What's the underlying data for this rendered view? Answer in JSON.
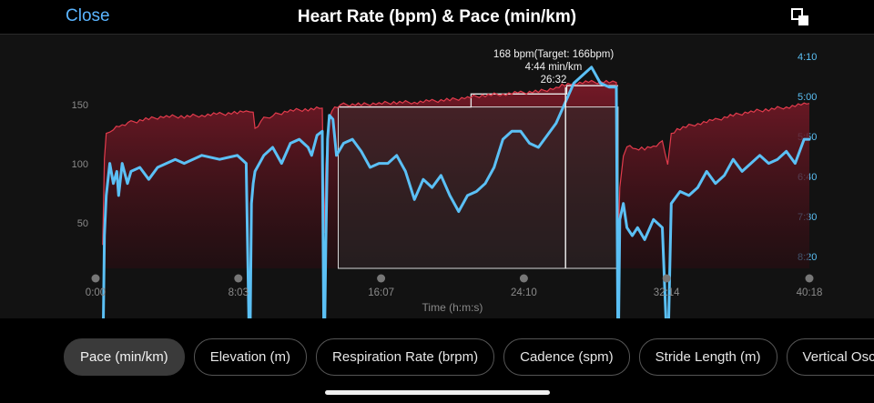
{
  "header": {
    "close_label": "Close",
    "title": "Heart Rate (bpm) & Pace (min/km)",
    "expand_icon": "expand-icon"
  },
  "colors": {
    "accent": "#5ab4ff",
    "heart_rate": "#e23b4c",
    "pace": "#5bc0f5"
  },
  "tooltip": {
    "heart_rate": "168 bpm(Target: 166bpm)",
    "pace": "4:44 min/km",
    "time": "26:32"
  },
  "tabs": [
    "Pace (min/km)",
    "Elevation (m)",
    "Respiration Rate (brpm)",
    "Cadence (spm)",
    "Stride Length (m)",
    "Vertical Oscillation"
  ],
  "chart_data": {
    "type": "line",
    "xlabel": "Time (h:m:s)",
    "x_ticks": [
      "0:00",
      "8:03",
      "16:07",
      "24:10",
      "32:14",
      "40:18"
    ],
    "x_range_min": [
      0,
      40.3
    ],
    "y_left_ticks": [
      "150",
      "100",
      "50"
    ],
    "y_right_ticks": [
      "4:10",
      "5:00",
      "5:50",
      "6:40",
      "7:30",
      "8:20"
    ],
    "target_band_bpm": [
      [
        13.7,
        21.2,
        148
      ],
      [
        21.2,
        26.6,
        159
      ],
      [
        26.6,
        29.5,
        166
      ]
    ],
    "series": [
      {
        "name": "Heart Rate (bpm)",
        "axis": "left",
        "points": [
          [
            0.4,
            30
          ],
          [
            0.5,
            105
          ],
          [
            0.6,
            125
          ],
          [
            1,
            130
          ],
          [
            1.5,
            133
          ],
          [
            2,
            135
          ],
          [
            3,
            138
          ],
          [
            4,
            140
          ],
          [
            5,
            140
          ],
          [
            6,
            141
          ],
          [
            7,
            142
          ],
          [
            8,
            143
          ],
          [
            8.5,
            144
          ],
          [
            8.9,
            145
          ],
          [
            9,
            130
          ],
          [
            9.5,
            138
          ],
          [
            10,
            141
          ],
          [
            11,
            145
          ],
          [
            12,
            146
          ],
          [
            12.8,
            147
          ],
          [
            12.9,
            40
          ],
          [
            13,
            100
          ],
          [
            13.1,
            125
          ],
          [
            13.2,
            140
          ],
          [
            13.5,
            148
          ],
          [
            14,
            150
          ],
          [
            15,
            150
          ],
          [
            16,
            151
          ],
          [
            17,
            152
          ],
          [
            18,
            152
          ],
          [
            19,
            153
          ],
          [
            20,
            154
          ],
          [
            21,
            156
          ],
          [
            22,
            158
          ],
          [
            23,
            159
          ],
          [
            24,
            160
          ],
          [
            25,
            161
          ],
          [
            26,
            164
          ],
          [
            26.5,
            167
          ],
          [
            27,
            168
          ],
          [
            28,
            169
          ],
          [
            29,
            169
          ],
          [
            29.4,
            168
          ],
          [
            29.5,
            30
          ],
          [
            29.6,
            80
          ],
          [
            29.8,
            105
          ],
          [
            30,
            115
          ],
          [
            30.5,
            112
          ],
          [
            31,
            113
          ],
          [
            31.5,
            115
          ],
          [
            32,
            118
          ],
          [
            32.3,
            100
          ],
          [
            32.5,
            125
          ],
          [
            33,
            130
          ],
          [
            34,
            134
          ],
          [
            35,
            137
          ],
          [
            36,
            141
          ],
          [
            37,
            144
          ],
          [
            38,
            146
          ],
          [
            39,
            148
          ],
          [
            40,
            150
          ],
          [
            40.3,
            151
          ]
        ]
      },
      {
        "name": "Pace (min/km)",
        "axis": "right",
        "points": [
          [
            0.4,
            8.1
          ],
          [
            0.5,
            6.4
          ],
          [
            0.6,
            5.9
          ],
          [
            0.8,
            5.5
          ],
          [
            1,
            5.75
          ],
          [
            1.2,
            5.6
          ],
          [
            1.3,
            5.9
          ],
          [
            1.5,
            5.5
          ],
          [
            1.8,
            5.75
          ],
          [
            2,
            5.6
          ],
          [
            2.5,
            5.55
          ],
          [
            3,
            5.7
          ],
          [
            3.5,
            5.55
          ],
          [
            4,
            5.5
          ],
          [
            4.5,
            5.45
          ],
          [
            5,
            5.5
          ],
          [
            6,
            5.4
          ],
          [
            7,
            5.45
          ],
          [
            8,
            5.4
          ],
          [
            8.5,
            5.5
          ],
          [
            8.7,
            8.1
          ],
          [
            8.8,
            6.0
          ],
          [
            8.9,
            5.75
          ],
          [
            9,
            5.6
          ],
          [
            9.5,
            5.4
          ],
          [
            10,
            5.3
          ],
          [
            10.5,
            5.5
          ],
          [
            11,
            5.25
          ],
          [
            11.5,
            5.2
          ],
          [
            12,
            5.3
          ],
          [
            12.2,
            5.4
          ],
          [
            12.5,
            5.15
          ],
          [
            12.8,
            5.1
          ],
          [
            12.9,
            8.1
          ],
          [
            13,
            6.5
          ],
          [
            13.1,
            5.2
          ],
          [
            13.2,
            4.9
          ],
          [
            13.4,
            4.95
          ],
          [
            13.6,
            5.4
          ],
          [
            14,
            5.25
          ],
          [
            14.5,
            5.2
          ],
          [
            15,
            5.35
          ],
          [
            15.5,
            5.55
          ],
          [
            16,
            5.5
          ],
          [
            16.5,
            5.5
          ],
          [
            17,
            5.4
          ],
          [
            17.5,
            5.6
          ],
          [
            18,
            5.95
          ],
          [
            18.5,
            5.7
          ],
          [
            19,
            5.8
          ],
          [
            19.5,
            5.65
          ],
          [
            20,
            5.9
          ],
          [
            20.5,
            6.1
          ],
          [
            21,
            5.9
          ],
          [
            21.5,
            5.85
          ],
          [
            22,
            5.75
          ],
          [
            22.5,
            5.55
          ],
          [
            23,
            5.2
          ],
          [
            23.5,
            5.1
          ],
          [
            24,
            5.1
          ],
          [
            24.5,
            5.25
          ],
          [
            25,
            5.3
          ],
          [
            25.5,
            5.15
          ],
          [
            26,
            5.0
          ],
          [
            26.5,
            4.75
          ],
          [
            27,
            4.5
          ],
          [
            27.5,
            4.4
          ],
          [
            28,
            4.3
          ],
          [
            28.5,
            4.5
          ],
          [
            29,
            4.55
          ],
          [
            29.4,
            4.55
          ],
          [
            29.5,
            8.1
          ],
          [
            29.6,
            6.2
          ],
          [
            29.8,
            6.0
          ],
          [
            30,
            6.3
          ],
          [
            30.3,
            6.4
          ],
          [
            30.6,
            6.3
          ],
          [
            31,
            6.45
          ],
          [
            31.5,
            6.2
          ],
          [
            32,
            6.3
          ],
          [
            32.3,
            8.0
          ],
          [
            32.5,
            6.0
          ],
          [
            33,
            5.85
          ],
          [
            33.5,
            5.9
          ],
          [
            34,
            5.8
          ],
          [
            34.5,
            5.6
          ],
          [
            35,
            5.75
          ],
          [
            35.5,
            5.65
          ],
          [
            36,
            5.45
          ],
          [
            36.5,
            5.6
          ],
          [
            37,
            5.5
          ],
          [
            37.5,
            5.4
          ],
          [
            38,
            5.5
          ],
          [
            38.5,
            5.45
          ],
          [
            39,
            5.35
          ],
          [
            39.5,
            5.5
          ],
          [
            40,
            5.2
          ],
          [
            40.3,
            5.2
          ]
        ]
      }
    ]
  }
}
